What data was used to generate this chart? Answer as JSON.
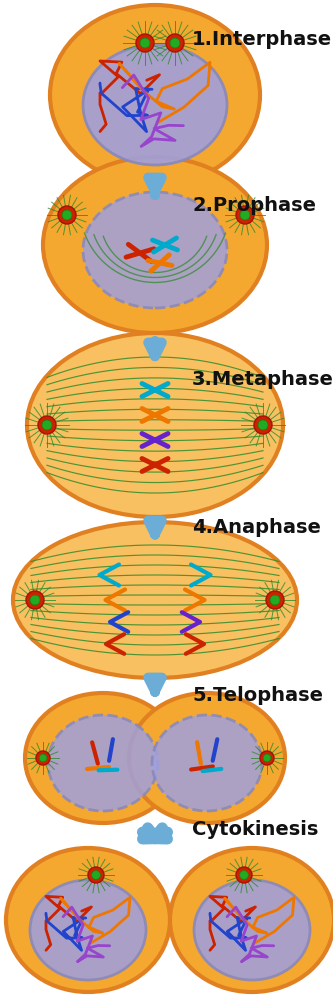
{
  "bg_color": "#FFFFFF",
  "cell_color_orange": "#F5A830",
  "cell_color_light": "#F8C060",
  "cell_edge": "#E08020",
  "nucleus_fill": "#A0A0DD",
  "nucleus_edge": "#8888BB",
  "spindle_color": "#2A8A2A",
  "arrow_color": "#6BADD6",
  "text_color": "#111111",
  "font_size": 14,
  "stages": [
    "1.Interphase",
    "2.Prophase",
    "3.Metaphase",
    "4.Anaphase",
    "5.Telophase",
    "Cytokinesis"
  ],
  "chr_red": "#CC2200",
  "chr_blue": "#2244CC",
  "chr_cyan": "#00AACC",
  "chr_orange": "#EE7700",
  "chr_purple": "#6622CC",
  "cen_red": "#CC2200",
  "cen_green": "#22AA22"
}
